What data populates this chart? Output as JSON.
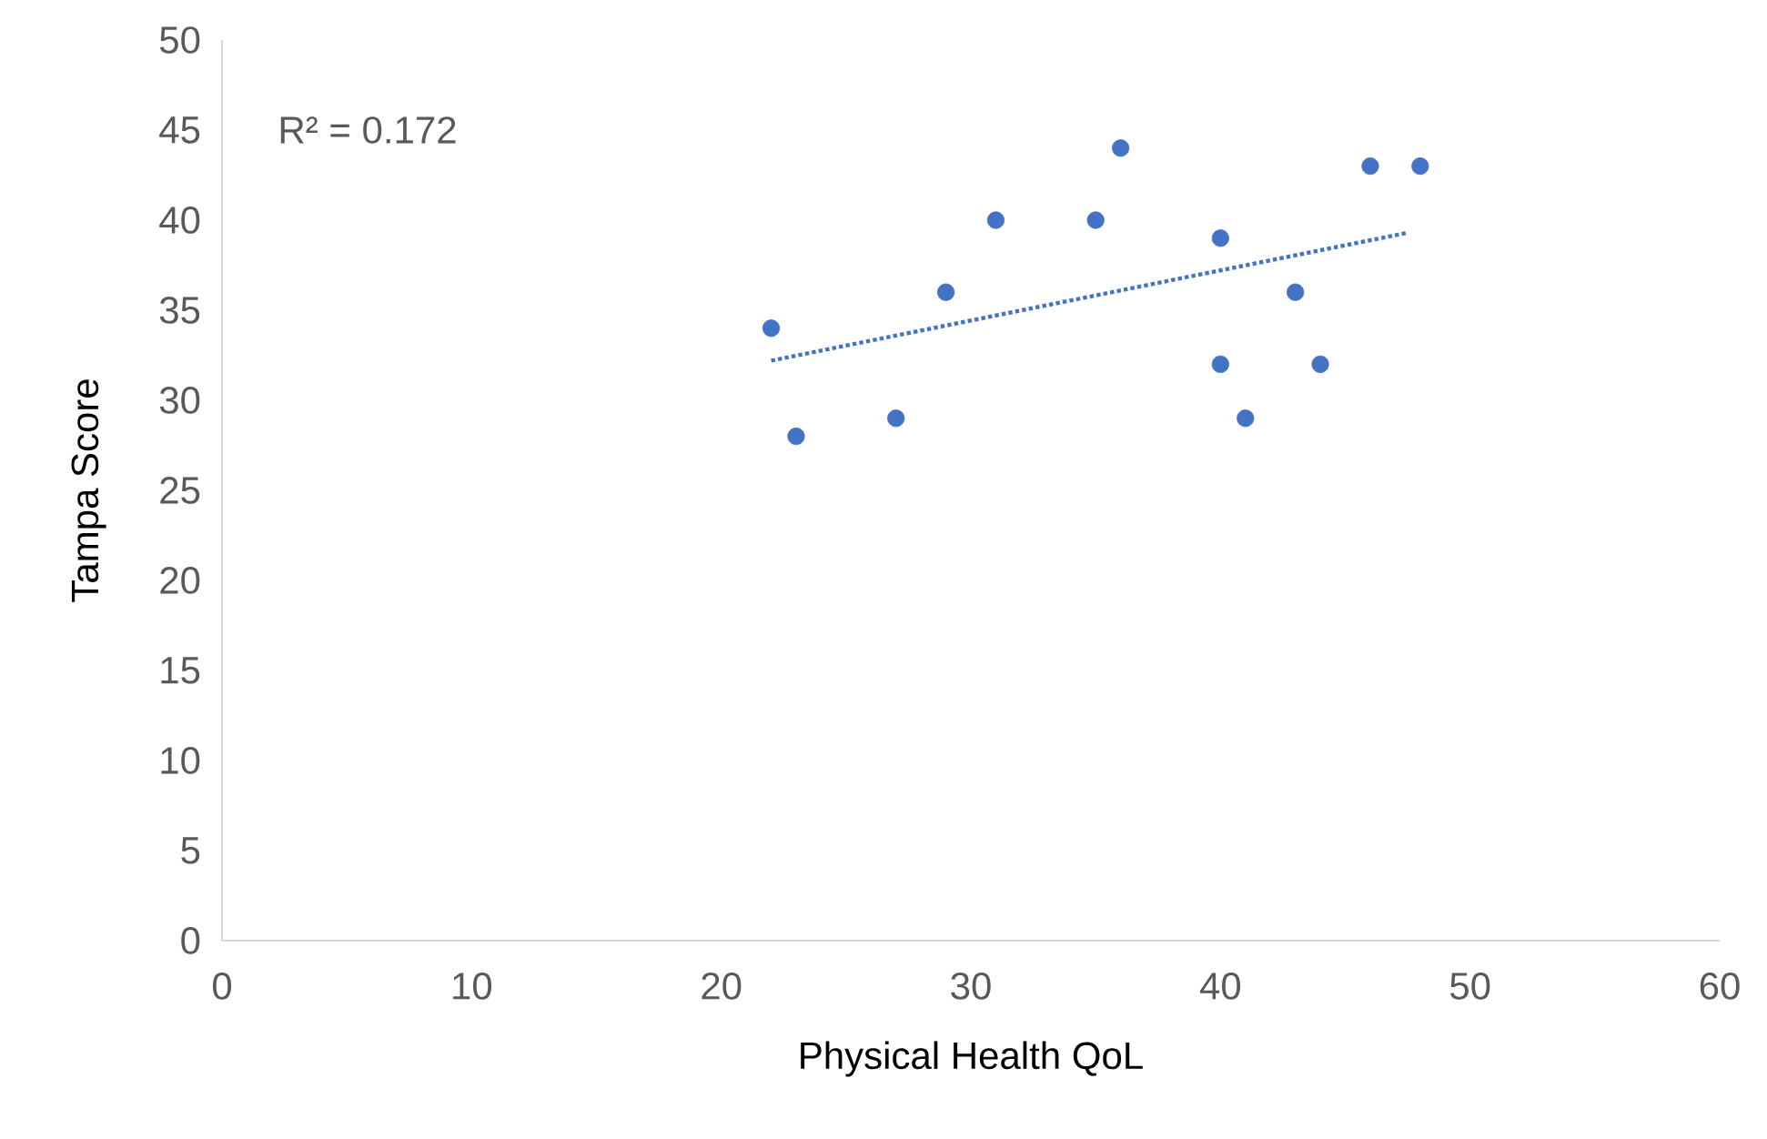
{
  "chart_data": {
    "type": "scatter",
    "xlabel": "Physical Health QoL",
    "ylabel": "Tampa Score",
    "x": [
      22,
      23,
      27,
      29,
      31,
      35,
      36,
      40,
      40,
      41,
      43,
      44,
      46,
      48
    ],
    "series": [
      {
        "color": "#4472c4",
        "marker": "circle",
        "values": [
          34,
          28,
          29,
          36,
          40,
          40,
          44,
          39,
          32,
          29,
          36,
          32,
          43,
          43
        ]
      },
      {
        "type": "line",
        "color": "#4472c4",
        "line_style": "dotted",
        "marker": "none",
        "x": [
          22,
          47.5
        ],
        "values": [
          32.2,
          39.3
        ]
      }
    ],
    "xlim": [
      0,
      60
    ],
    "xticks": [
      0,
      10,
      20,
      30,
      40,
      50,
      60
    ],
    "ylim": [
      0,
      50
    ],
    "yticks": [
      0,
      5,
      10,
      15,
      20,
      25,
      30,
      35,
      40,
      45,
      50
    ],
    "grid": false,
    "annotations": [
      "R² = 0.172"
    ]
  }
}
